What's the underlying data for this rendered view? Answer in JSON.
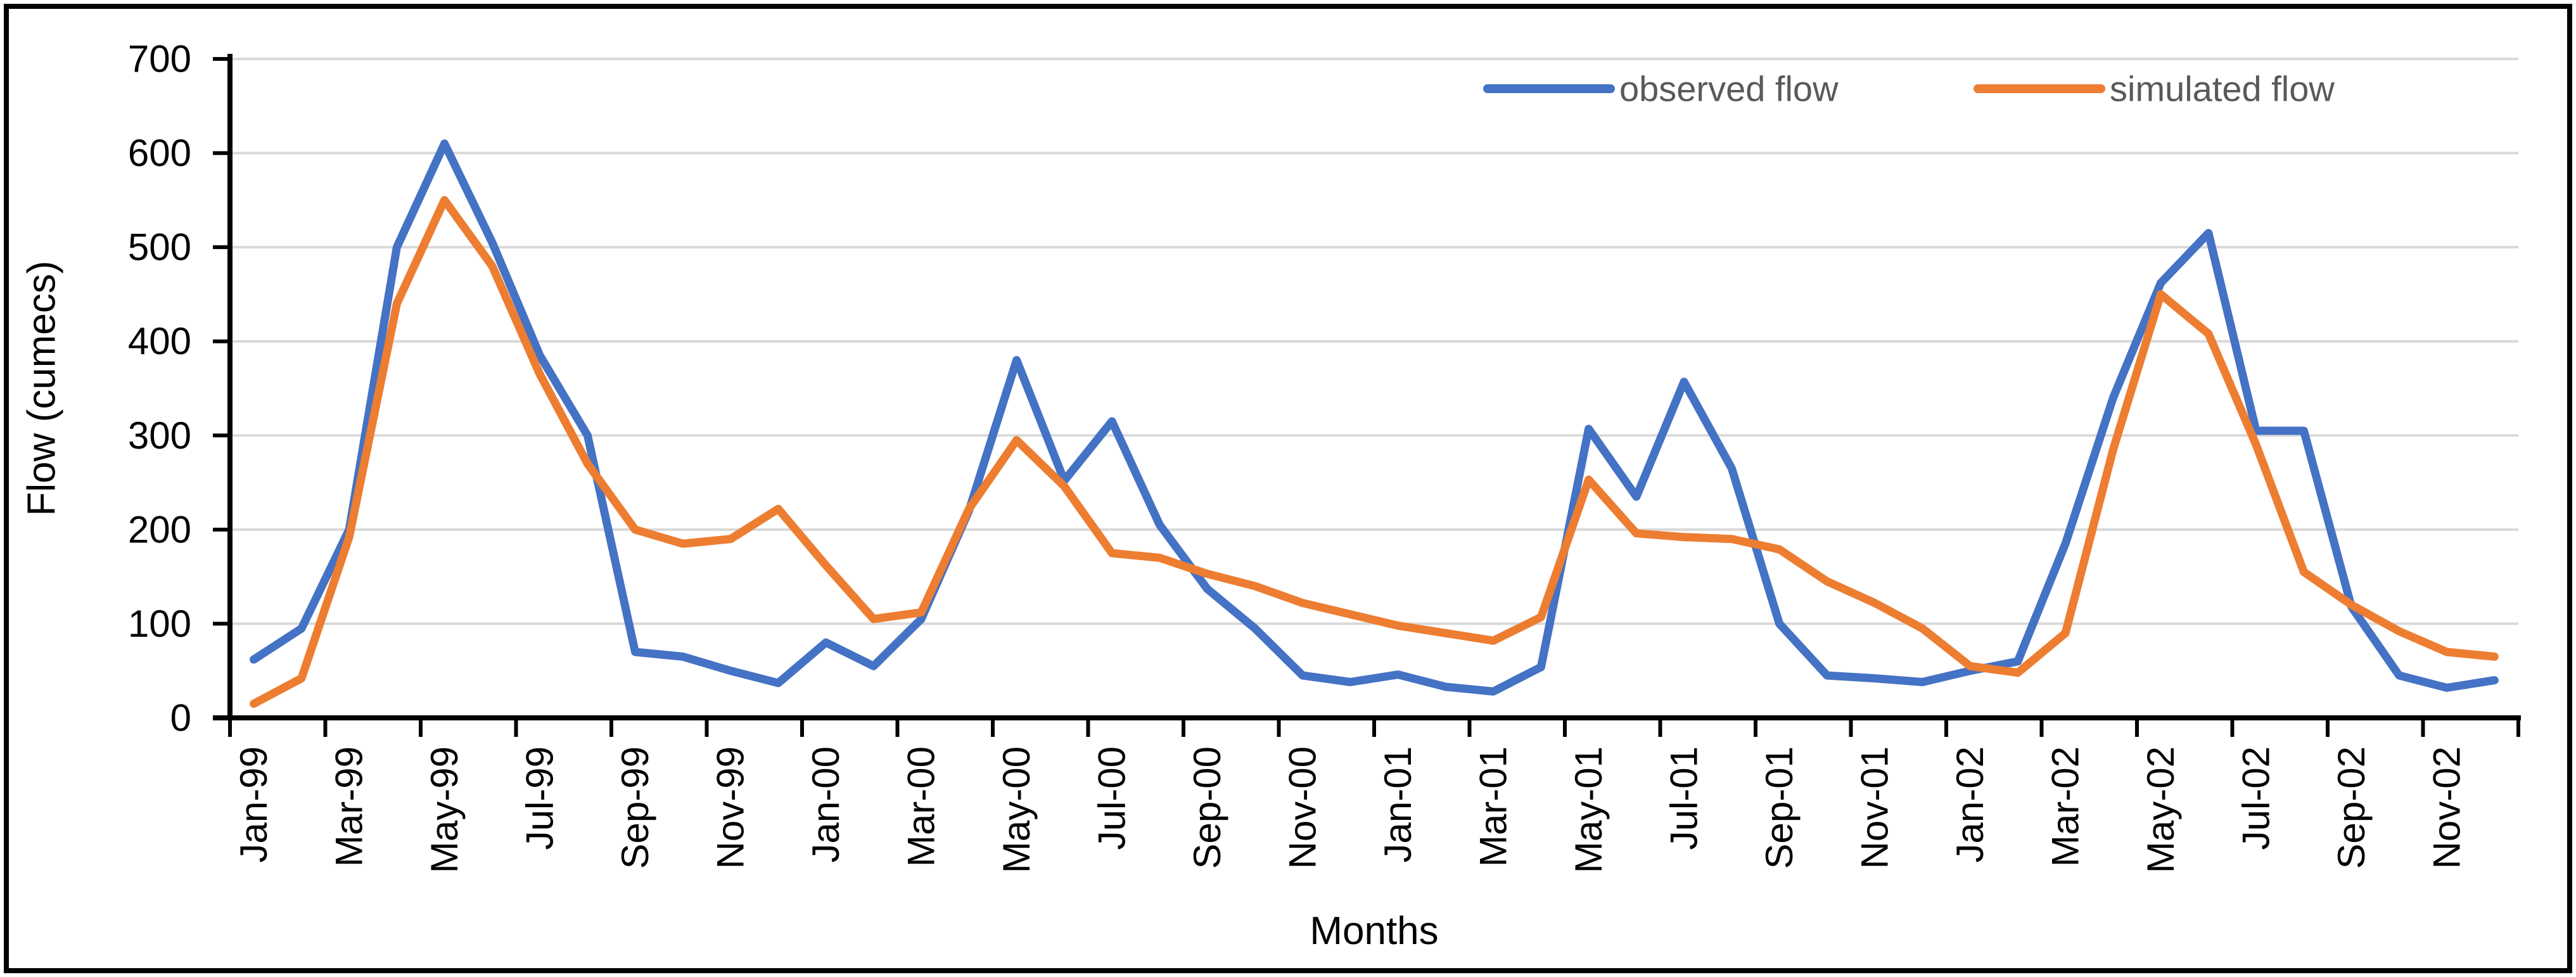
{
  "figure": {
    "background_color": "#ffffff",
    "border_color": "#000000"
  },
  "axes_style": {
    "axis_color": "#000000",
    "grid_color": "#d9d9d9",
    "tick_label_color": "#000000",
    "legend_text_color": "#595959"
  },
  "chart_data": {
    "type": "line",
    "title": "",
    "xlabel": "Months",
    "ylabel": "Flow (cumecs)",
    "ylim": [
      0,
      700
    ],
    "ytick_interval": 100,
    "yticks": [
      0,
      100,
      200,
      300,
      400,
      500,
      600,
      700
    ],
    "grid": "horizontal",
    "legend_position": "inside-top-right",
    "x_categories": [
      "Jan-99",
      "Feb-99",
      "Mar-99",
      "Apr-99",
      "May-99",
      "Jun-99",
      "Jul-99",
      "Aug-99",
      "Sep-99",
      "Oct-99",
      "Nov-99",
      "Dec-99",
      "Jan-00",
      "Feb-00",
      "Mar-00",
      "Apr-00",
      "May-00",
      "Jun-00",
      "Jul-00",
      "Aug-00",
      "Sep-00",
      "Oct-00",
      "Nov-00",
      "Dec-00",
      "Jan-01",
      "Feb-01",
      "Mar-01",
      "Apr-01",
      "May-01",
      "Jun-01",
      "Jul-01",
      "Aug-01",
      "Sep-01",
      "Oct-01",
      "Nov-01",
      "Dec-01",
      "Jan-02",
      "Feb-02",
      "Mar-02",
      "Apr-02",
      "May-02",
      "Jun-02",
      "Jul-02",
      "Aug-02",
      "Sep-02",
      "Oct-02",
      "Nov-02",
      "Dec-02"
    ],
    "xtick_labels": [
      "Jan-99",
      "Mar-99",
      "May-99",
      "Jul-99",
      "Sep-99",
      "Nov-99",
      "Jan-00",
      "Mar-00",
      "May-00",
      "Jul-00",
      "Sep-00",
      "Nov-00",
      "Jan-01",
      "Mar-01",
      "May-01",
      "Jul-01",
      "Sep-01",
      "Nov-01",
      "Jan-02",
      "Mar-02",
      "May-02",
      "Jul-02",
      "Sep-02",
      "Nov-02"
    ],
    "series": [
      {
        "name": "observed flow",
        "color": "#4472c4",
        "values": [
          62,
          95,
          200,
          500,
          610,
          505,
          385,
          300,
          70,
          65,
          50,
          37,
          80,
          55,
          105,
          220,
          380,
          252,
          315,
          205,
          137,
          95,
          45,
          38,
          46,
          33,
          28,
          54,
          307,
          235,
          357,
          265,
          100,
          45,
          42,
          38,
          50,
          60,
          185,
          340,
          462,
          515,
          305,
          305,
          118,
          45,
          32,
          40
        ]
      },
      {
        "name": "simulated flow",
        "color": "#ed7d31",
        "values": [
          15,
          42,
          192,
          440,
          550,
          480,
          365,
          270,
          200,
          185,
          190,
          222,
          162,
          105,
          112,
          222,
          295,
          246,
          175,
          170,
          153,
          140,
          122,
          110,
          98,
          90,
          82,
          107,
          253,
          196,
          192,
          190,
          179,
          145,
          122,
          95,
          55,
          48,
          90,
          285,
          450,
          408,
          290,
          155,
          120,
          92,
          70,
          65
        ]
      }
    ]
  }
}
